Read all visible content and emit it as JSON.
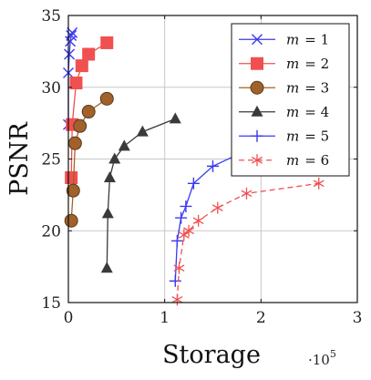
{
  "chart_data": {
    "type": "line",
    "title": "",
    "xlabel": "Storage",
    "ylabel": "PSNR",
    "x_scale_label": "·10",
    "x_scale_exponent": "5",
    "x_scale_factor": 100000,
    "xlim": [
      0,
      300000
    ],
    "ylim": [
      15,
      35
    ],
    "x_ticks": [
      0,
      100000,
      200000,
      300000
    ],
    "x_tick_labels": [
      "0",
      "1",
      "2",
      "3"
    ],
    "y_ticks": [
      15,
      20,
      25,
      30,
      35
    ],
    "y_tick_labels": [
      "15",
      "20",
      "25",
      "30",
      "35"
    ],
    "grid": true,
    "legend_position": "top-right",
    "series": [
      {
        "name": "m = 1",
        "legend_var": "m",
        "legend_value": "= 1",
        "color": "#3a3af0",
        "marker": "x",
        "line": "solid",
        "x": [
          0,
          0,
          1000,
          2000,
          3000,
          4000
        ],
        "y": [
          27.4,
          31.0,
          32.3,
          33.2,
          33.6,
          33.8
        ]
      },
      {
        "name": "m = 2",
        "legend_var": "m",
        "legend_value": "= 2",
        "color": "#f05050",
        "marker": "square",
        "line": "solid",
        "x": [
          3000,
          4000,
          8000,
          14000,
          21000,
          40000
        ],
        "y": [
          23.7,
          27.4,
          30.3,
          31.5,
          32.3,
          33.1
        ]
      },
      {
        "name": "m = 3",
        "legend_var": "m",
        "legend_value": "= 3",
        "color": "#a0622a",
        "marker": "circle",
        "line": "solid",
        "x": [
          3000,
          5000,
          7000,
          12000,
          21000,
          40000
        ],
        "y": [
          20.7,
          22.8,
          26.1,
          27.3,
          28.3,
          29.2
        ]
      },
      {
        "name": "m = 4",
        "legend_var": "m",
        "legend_value": "= 4",
        "color": "#3a3a3a",
        "marker": "triangle",
        "line": "solid",
        "x": [
          40000,
          41000,
          43000,
          48000,
          58000,
          77000,
          111000
        ],
        "y": [
          17.4,
          21.2,
          23.7,
          25.0,
          25.9,
          26.9,
          27.8
        ]
      },
      {
        "name": "m = 5",
        "legend_var": "m",
        "legend_value": "= 5",
        "color": "#3a3af0",
        "marker": "plus",
        "line": "solid",
        "x": [
          111000,
          113000,
          117000,
          122000,
          130000,
          150000,
          185000
        ],
        "y": [
          16.5,
          19.3,
          20.9,
          21.7,
          23.3,
          24.5,
          25.6
        ]
      },
      {
        "name": "m = 6",
        "legend_var": "m",
        "legend_value": "= 6",
        "color": "#f05050",
        "marker": "asterisk",
        "line": "dashed",
        "x": [
          113000,
          115000,
          120000,
          125000,
          135000,
          155000,
          185000,
          260000
        ],
        "y": [
          15.2,
          17.4,
          19.7,
          20.0,
          20.7,
          21.6,
          22.6,
          23.3
        ]
      }
    ]
  }
}
